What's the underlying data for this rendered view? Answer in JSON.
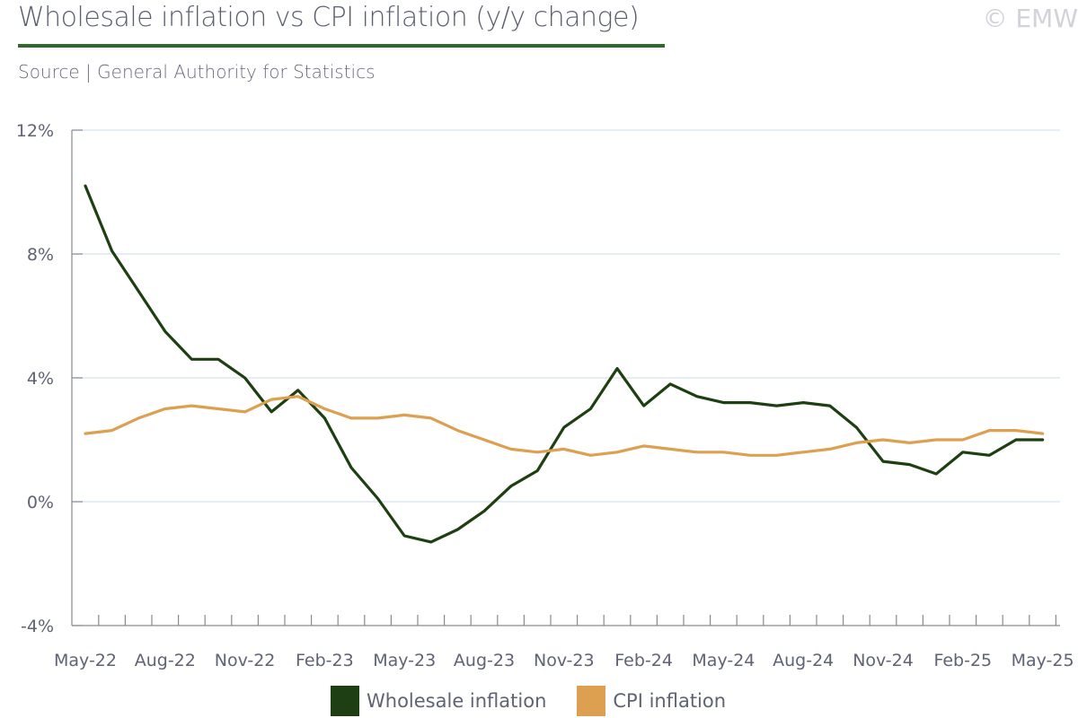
{
  "header": {
    "title": "Wholesale inflation vs CPI inflation (y/y change)",
    "subtitle": "Source | General Authority for Statistics",
    "copyright": "© EMW",
    "accent_color": "#2e6b2a"
  },
  "chart_data": {
    "type": "line",
    "title": "Wholesale inflation vs CPI inflation (y/y change)",
    "xlabel": "",
    "ylabel": "",
    "ylim": [
      -4,
      12
    ],
    "yticks": [
      -4,
      0,
      4,
      8,
      12
    ],
    "ytick_labels": [
      "-4%",
      "0%",
      "4%",
      "8%",
      "12%"
    ],
    "xtick_labels": [
      "May-22",
      "Aug-22",
      "Nov-22",
      "Feb-23",
      "May-23",
      "Aug-23",
      "Nov-23",
      "Feb-24",
      "May-24",
      "Aug-24",
      "Nov-24",
      "Feb-25",
      "May-25"
    ],
    "x": [
      "May-22",
      "Jun-22",
      "Jul-22",
      "Aug-22",
      "Sep-22",
      "Oct-22",
      "Nov-22",
      "Dec-22",
      "Jan-23",
      "Feb-23",
      "Mar-23",
      "Apr-23",
      "May-23",
      "Jun-23",
      "Jul-23",
      "Aug-23",
      "Sep-23",
      "Oct-23",
      "Nov-23",
      "Dec-23",
      "Jan-24",
      "Feb-24",
      "Mar-24",
      "Apr-24",
      "May-24",
      "Jun-24",
      "Jul-24",
      "Aug-24",
      "Sep-24",
      "Oct-24",
      "Nov-24",
      "Dec-24",
      "Jan-25",
      "Feb-25",
      "Mar-25",
      "Apr-25",
      "May-25"
    ],
    "grid": true,
    "legend_position": "bottom-center",
    "series": [
      {
        "name": "Wholesale inflation",
        "color": "#1e3f12",
        "values": [
          10.2,
          8.1,
          6.8,
          5.5,
          4.6,
          4.6,
          4.0,
          2.9,
          3.6,
          2.7,
          1.1,
          0.1,
          -1.1,
          -1.3,
          -0.9,
          -0.3,
          0.5,
          1.0,
          2.4,
          3.0,
          4.3,
          3.1,
          3.8,
          3.4,
          3.2,
          3.2,
          3.1,
          3.2,
          3.1,
          2.4,
          1.3,
          1.2,
          0.9,
          1.6,
          1.5,
          2.0,
          2.0
        ]
      },
      {
        "name": "CPI inflation",
        "color": "#dca050",
        "values": [
          2.2,
          2.3,
          2.7,
          3.0,
          3.1,
          3.0,
          2.9,
          3.3,
          3.4,
          3.0,
          2.7,
          2.7,
          2.8,
          2.7,
          2.3,
          2.0,
          1.7,
          1.6,
          1.7,
          1.5,
          1.6,
          1.8,
          1.7,
          1.6,
          1.6,
          1.5,
          1.5,
          1.6,
          1.7,
          1.9,
          2.0,
          1.9,
          2.0,
          2.0,
          2.3,
          2.3,
          2.2
        ]
      }
    ]
  }
}
